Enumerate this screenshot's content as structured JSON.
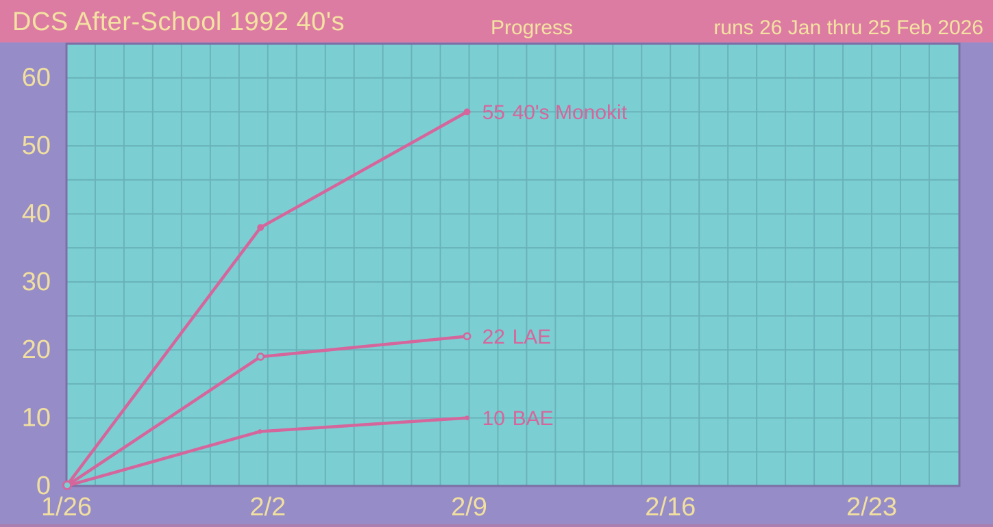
{
  "header": {
    "title": "DCS After-School 1992 40's",
    "subtitle": "Progress",
    "date_range": "runs 26 Jan thru 25 Feb 2026"
  },
  "colors": {
    "header_bg": "#dd7ca2",
    "header_text": "#f3e2a2",
    "page_bg": "#958cc8",
    "plot_bg": "#7bcfd3",
    "grid": "#69b2b9",
    "plot_border": "#7d6fa5",
    "series_line": "#d5669c",
    "axis_text": "#f1dfa0",
    "bottom_strip": "#a87fae"
  },
  "chart_data": {
    "type": "line",
    "title": "Progress",
    "xlabel": "",
    "ylabel": "",
    "x_unit": "days since 1/26",
    "x_range_days": [
      0,
      31.05
    ],
    "y_range": [
      0,
      65
    ],
    "grid": {
      "x_step_days": 1,
      "y_step": 5,
      "on": true
    },
    "y_ticks": [
      0,
      10,
      20,
      30,
      40,
      50,
      60
    ],
    "x_ticks": [
      {
        "label": "1/26",
        "day": 0
      },
      {
        "label": "2/2",
        "day": 7
      },
      {
        "label": "2/9",
        "day": 14
      },
      {
        "label": "2/16",
        "day": 21
      },
      {
        "label": "2/23",
        "day": 28
      }
    ],
    "legend_position": "inline-right-of-last-point",
    "origin_marker": "open-circle",
    "series": [
      {
        "name": "40's Monokit",
        "label_value": "55",
        "marker": "filled-dot",
        "points": [
          {
            "day": 0,
            "value": 0
          },
          {
            "day": 6.75,
            "value": 38
          },
          {
            "day": 13.93,
            "value": 55
          }
        ]
      },
      {
        "name": "LAE",
        "label_value": "22",
        "marker": "open-circle",
        "points": [
          {
            "day": 0,
            "value": 0
          },
          {
            "day": 6.75,
            "value": 19
          },
          {
            "day": 13.93,
            "value": 22
          }
        ]
      },
      {
        "name": "BAE",
        "label_value": "10",
        "marker": "small-dot",
        "points": [
          {
            "day": 0,
            "value": 0
          },
          {
            "day": 6.73,
            "value": 8
          },
          {
            "day": 13.93,
            "value": 10
          }
        ]
      }
    ]
  }
}
